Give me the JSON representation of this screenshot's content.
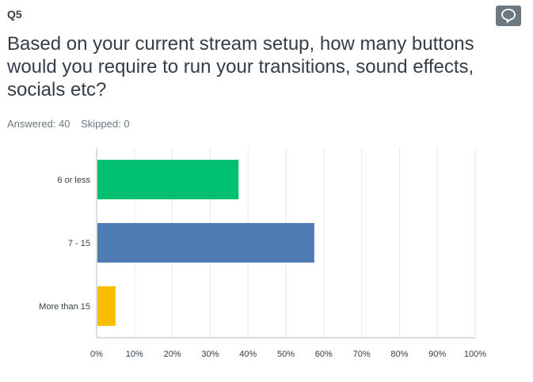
{
  "question": {
    "number": "Q5",
    "text": "Based on your current stream setup, how many buttons would you require to run your transitions, sound effects, socials etc?",
    "answered": "Answered: 40",
    "skipped": "Skipped: 0"
  },
  "comment_button": {
    "icon": "comment-icon",
    "color": "#6b787f"
  },
  "chart_data": {
    "type": "bar",
    "orientation": "horizontal",
    "categories": [
      "6 or less",
      "7 - 15",
      "More than 15"
    ],
    "values": [
      37.5,
      57.5,
      5.0
    ],
    "colors": [
      "#00bf6f",
      "#507cb6",
      "#f9be00"
    ],
    "xlim": [
      0,
      100
    ],
    "x_ticks": [
      "0%",
      "10%",
      "20%",
      "30%",
      "40%",
      "50%",
      "60%",
      "70%",
      "80%",
      "90%",
      "100%"
    ],
    "grid": true
  }
}
